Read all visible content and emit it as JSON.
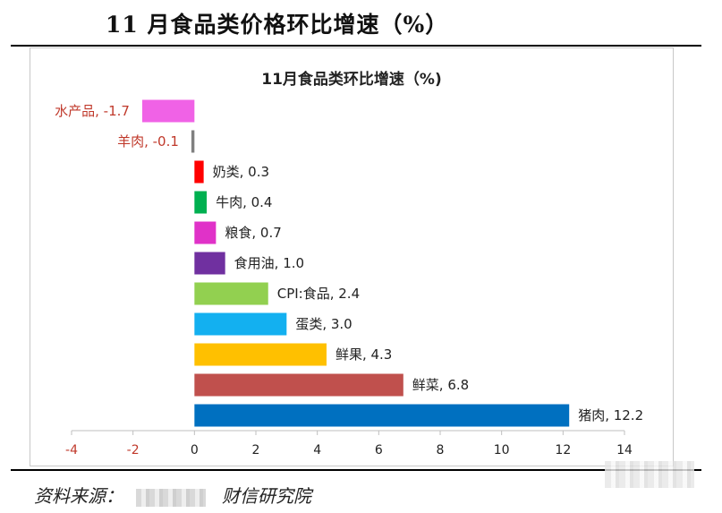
{
  "page_title": "11 月食品类价格环比增速（%）",
  "source": {
    "label": "资料来源：",
    "org": "财信研究院"
  },
  "colors": {
    "negative_label": "#c0392b",
    "axis_label": "#c0392b",
    "text": "#222222"
  },
  "chart_data": {
    "type": "bar",
    "orientation": "horizontal",
    "title": "11月食品类环比增速（%)",
    "xlim": [
      -4,
      14
    ],
    "xticks": [
      "-4",
      "-2",
      "0",
      "2",
      "4",
      "6",
      "8",
      "10",
      "12",
      "14"
    ],
    "grid": false,
    "legend": "none",
    "bars": [
      {
        "category": "水产品",
        "value": -1.7,
        "label": "水产品, -1.7",
        "color": "#f062e6"
      },
      {
        "category": "羊肉",
        "value": -0.1,
        "label": "羊肉, -0.1",
        "color": "#808080"
      },
      {
        "category": "奶类",
        "value": 0.3,
        "label": "奶类, 0.3",
        "color": "#ff0000"
      },
      {
        "category": "牛肉",
        "value": 0.4,
        "label": "牛肉, 0.4",
        "color": "#00b050"
      },
      {
        "category": "粮食",
        "value": 0.7,
        "label": "粮食, 0.7",
        "color": "#e032c8"
      },
      {
        "category": "食用油",
        "value": 1.0,
        "label": "食用油, 1.0",
        "color": "#7030a0"
      },
      {
        "category": "CPI:食品",
        "value": 2.4,
        "label": "CPI:食品, 2.4",
        "color": "#92d050"
      },
      {
        "category": "蛋类",
        "value": 3.0,
        "label": "蛋类, 3.0",
        "color": "#13b0f0"
      },
      {
        "category": "鲜果",
        "value": 4.3,
        "label": "鲜果, 4.3",
        "color": "#ffc000"
      },
      {
        "category": "鲜菜",
        "value": 6.8,
        "label": "鲜菜, 6.8",
        "color": "#c0504d"
      },
      {
        "category": "猪肉",
        "value": 12.2,
        "label": "猪肉, 12.2",
        "color": "#0070c0"
      }
    ]
  }
}
